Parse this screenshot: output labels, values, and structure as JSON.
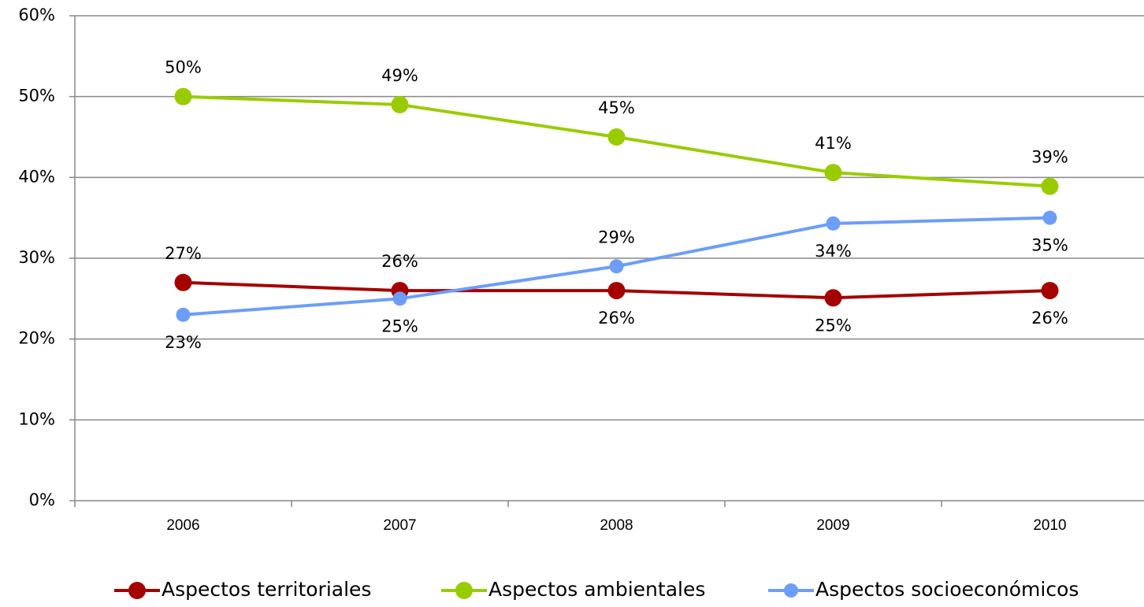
{
  "chart_data": {
    "type": "line",
    "categories": [
      "2006",
      "2007",
      "2008",
      "2009",
      "2010"
    ],
    "series": [
      {
        "name": "Aspectos territoriales",
        "color": "#a50000",
        "values": [
          27,
          26,
          26,
          25.1,
          26
        ],
        "value_labels": [
          "27%",
          "26%",
          "26%",
          "25%",
          "26%"
        ]
      },
      {
        "name": "Aspectos ambientales",
        "color": "#99cc00",
        "values": [
          50,
          49,
          45,
          40.6,
          38.9
        ],
        "value_labels": [
          "50%",
          "49%",
          "45%",
          "41%",
          "39%"
        ]
      },
      {
        "name": "Aspectos socioeconómicos",
        "color": "#6c9ef8",
        "values": [
          23,
          25,
          29,
          34.3,
          35
        ],
        "value_labels": [
          "23%",
          "25%",
          "29%",
          "34%",
          "35%"
        ]
      }
    ],
    "ylim": [
      0,
      60
    ],
    "yticks": [
      {
        "value": 0,
        "label": "0%"
      },
      {
        "value": 10,
        "label": "10%"
      },
      {
        "value": 20,
        "label": "20%"
      },
      {
        "value": 30,
        "label": "30%"
      },
      {
        "value": 40,
        "label": "40%"
      },
      {
        "value": 50,
        "label": "50%"
      },
      {
        "value": 60,
        "label": "60%"
      }
    ],
    "grid": true,
    "legend": "bottom"
  }
}
